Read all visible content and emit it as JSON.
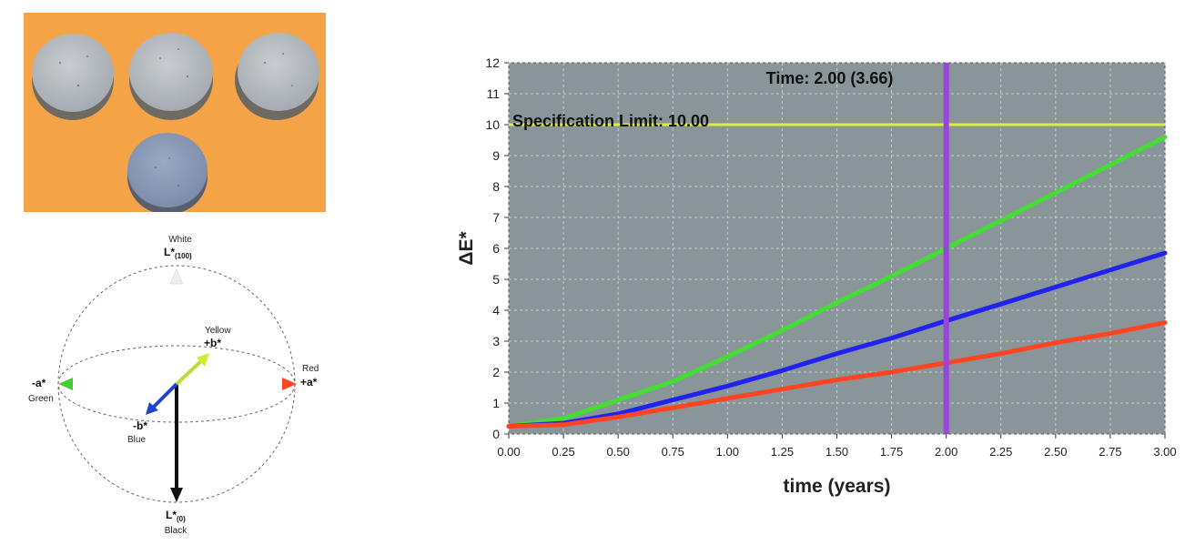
{
  "photo": {
    "colors": {
      "background": "#f4a446",
      "tablet_gray": "#b9bec3",
      "tablet_blue": "#8d9eba"
    }
  },
  "color_sphere": {
    "white_word": "White",
    "l_top_main": "L*",
    "l_top_sub": "(100)",
    "yellow_word": "Yellow",
    "b_plus": "+b*",
    "red_word": "Red",
    "a_plus": "+a*",
    "a_minus": "-a*",
    "green_word": "Green",
    "b_minus": "-b*",
    "blue_word": "Blue",
    "l_bottom_main": "L*",
    "l_bottom_sub": "(0)",
    "black_word": "Black"
  },
  "chart_data": {
    "type": "line",
    "title": "",
    "xlabel": "time (years)",
    "ylabel": "ΔE*",
    "xlim": [
      0,
      3
    ],
    "ylim": [
      0,
      12
    ],
    "grid": true,
    "x_ticks": [
      "0.00",
      "0.25",
      "0.50",
      "0.75",
      "1.00",
      "1.25",
      "1.50",
      "1.75",
      "2.00",
      "2.25",
      "2.50",
      "2.75",
      "3.00"
    ],
    "y_ticks": [
      "0",
      "1",
      "2",
      "3",
      "4",
      "5",
      "6",
      "7",
      "8",
      "9",
      "10",
      "11",
      "12"
    ],
    "x": [
      0,
      0.25,
      0.5,
      0.75,
      1.0,
      1.25,
      1.5,
      1.75,
      2.0,
      2.25,
      2.5,
      2.75,
      3.0
    ],
    "series": [
      {
        "color": "#44dd33",
        "values": [
          0.25,
          0.5,
          1.1,
          1.7,
          2.5,
          3.35,
          4.25,
          5.1,
          6.0,
          6.9,
          7.8,
          8.7,
          9.6
        ]
      },
      {
        "color": "#2222ee",
        "values": [
          0.25,
          0.35,
          0.65,
          1.1,
          1.55,
          2.05,
          2.6,
          3.1,
          3.66,
          4.2,
          4.75,
          5.3,
          5.85
        ]
      },
      {
        "color": "#ff4422",
        "values": [
          0.25,
          0.3,
          0.55,
          0.85,
          1.15,
          1.45,
          1.75,
          2.0,
          2.3,
          2.6,
          2.95,
          3.25,
          3.6
        ]
      }
    ],
    "specification_limit": {
      "value": 10,
      "label": "Specification Limit: 10.00",
      "color": "#ddee33"
    },
    "time_marker": {
      "x": 2.0,
      "label": "Time: 2.00 (3.66)",
      "color": "#9944dd"
    },
    "colors": {
      "plot_background": "#8a9599",
      "grid": "#c5ccce"
    }
  }
}
